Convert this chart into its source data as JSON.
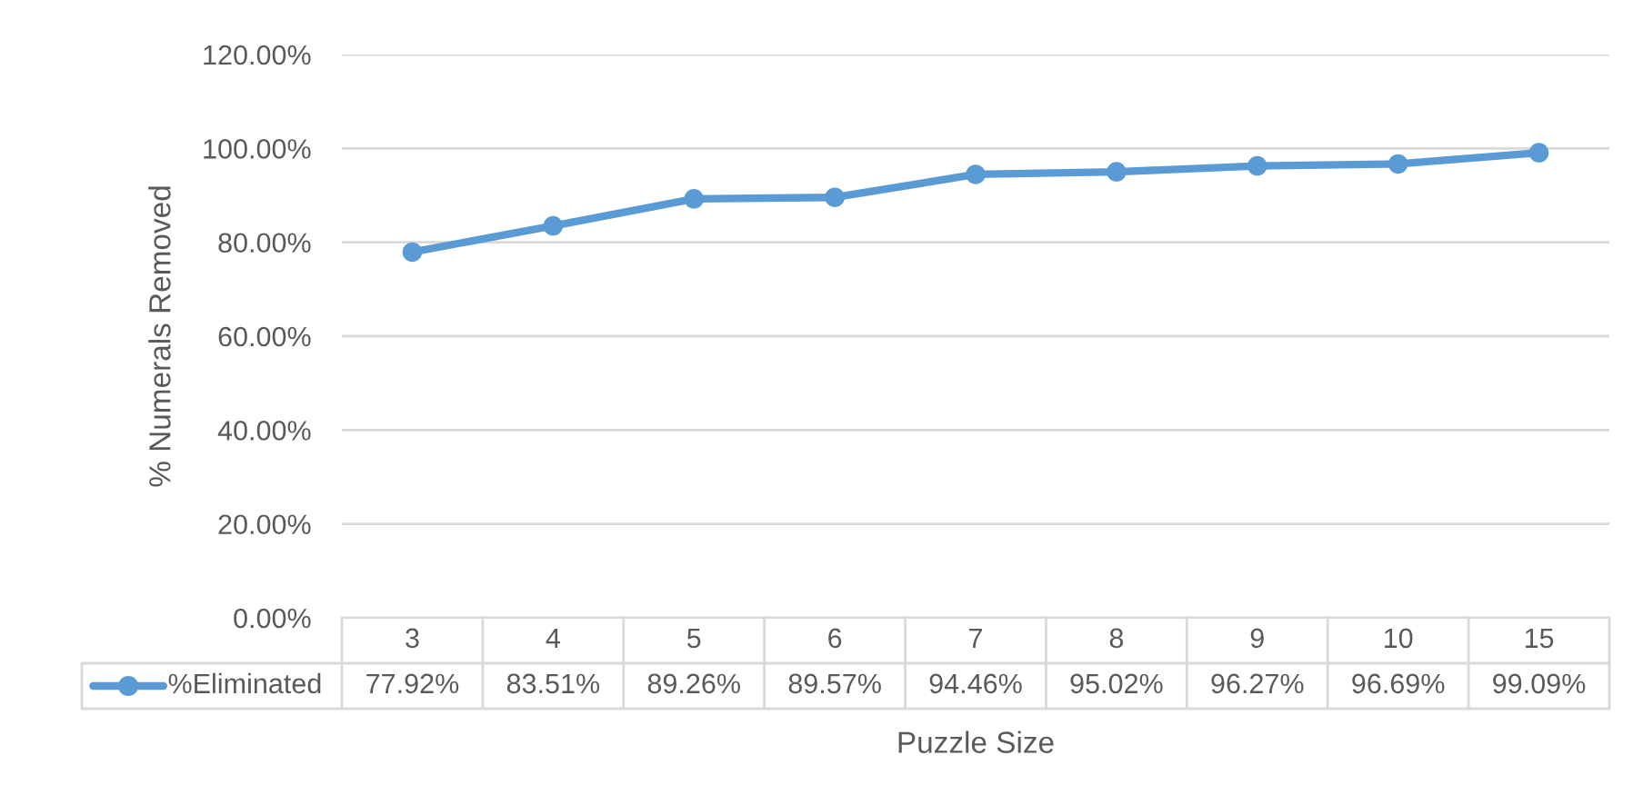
{
  "chart_data": {
    "type": "line",
    "xlabel": "Puzzle Size",
    "ylabel": "% Numerals Removed",
    "categories": [
      "3",
      "4",
      "5",
      "6",
      "7",
      "8",
      "9",
      "10",
      "15"
    ],
    "series": [
      {
        "name": "%Eliminated",
        "color": "#5b9bd5",
        "values": [
          77.92,
          83.51,
          89.26,
          89.57,
          94.46,
          95.02,
          96.27,
          96.69,
          99.09
        ],
        "value_labels": [
          "77.92%",
          "83.51%",
          "89.26%",
          "89.57%",
          "94.46%",
          "95.02%",
          "96.27%",
          "96.69%",
          "99.09%"
        ]
      }
    ],
    "ylim": [
      0,
      120
    ],
    "yticks": [
      {
        "value": 0,
        "label": "0.00%"
      },
      {
        "value": 20,
        "label": "20.00%"
      },
      {
        "value": 40,
        "label": "40.00%"
      },
      {
        "value": 60,
        "label": "60.00%"
      },
      {
        "value": 80,
        "label": "80.00%"
      },
      {
        "value": 100,
        "label": "100.00%"
      },
      {
        "value": 120,
        "label": "120.00%"
      }
    ],
    "grid": "y",
    "marker": "circle",
    "line_style": "solid",
    "legend": "bottom",
    "data_labels": true
  }
}
